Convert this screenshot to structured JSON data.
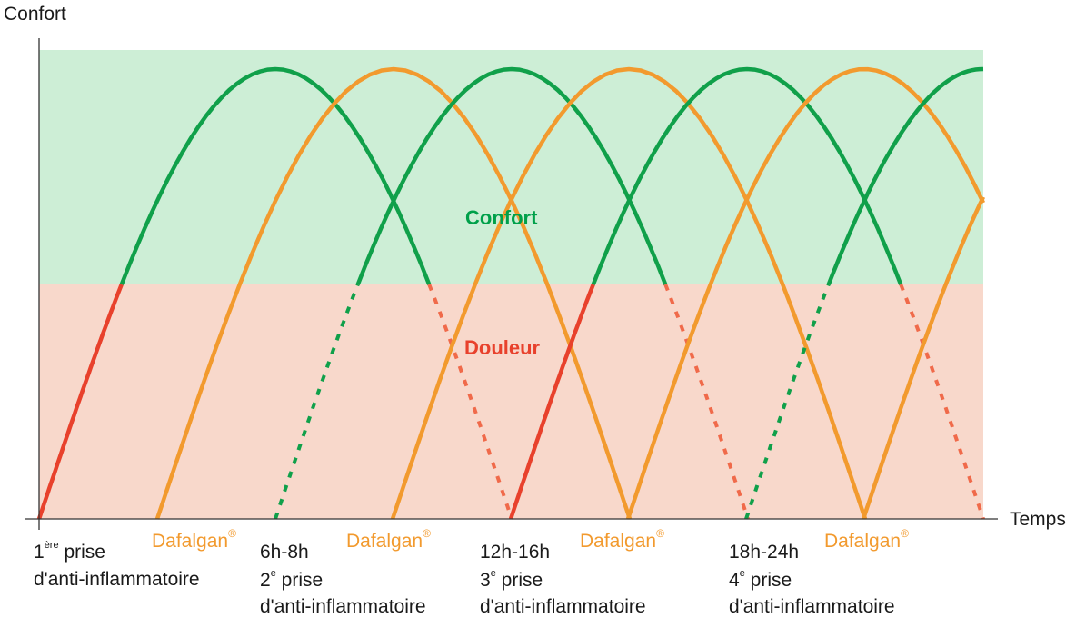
{
  "axes": {
    "y_label": "Confort",
    "x_label": "Temps"
  },
  "zones": {
    "comfort": {
      "label": "Confort",
      "bg_color": "#cdeed6",
      "text_color": "#00a04a"
    },
    "pain": {
      "label": "Douleur",
      "bg_color": "#f8d8cb",
      "text_color": "#e8412c"
    }
  },
  "colors": {
    "green": "#10a04a",
    "orange": "#f29a2e",
    "red": "#e8412c",
    "dotted_green": "#10a04a",
    "dotted_red": "#f06a4a"
  },
  "doses": [
    {
      "time": "",
      "ordinal": "1",
      "ordinal_sup": "ère",
      "line1": "prise",
      "line2": "d'anti-inflammatoire"
    },
    {
      "time": "6h-8h",
      "ordinal": "2",
      "ordinal_sup": "e",
      "line1": "prise",
      "line2": "d'anti-inflammatoire"
    },
    {
      "time": "12h-16h",
      "ordinal": "3",
      "ordinal_sup": "e",
      "line1": "prise",
      "line2": "d'anti-inflammatoire"
    },
    {
      "time": "18h-24h",
      "ordinal": "4",
      "ordinal_sup": "e",
      "line1": "prise",
      "line2": "d'anti-inflammatoire"
    }
  ],
  "dafalgan": {
    "label": "Dafalgan",
    "mark": "®"
  }
}
